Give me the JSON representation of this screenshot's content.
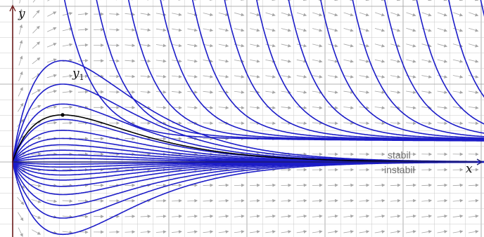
{
  "figure": {
    "axis_x_label": "x",
    "axis_y_label": "y",
    "curve_label_main": "y",
    "curve_label_sub": "1",
    "label_stable": "stabil",
    "label_unstable": "instabil"
  },
  "colors": {
    "background": "#ffffff",
    "grid": "#c8c8c8",
    "grid_major": "#9a9a9a",
    "arrows": "#a6a6a6",
    "curves": "#1c1cc8",
    "highlight_curve": "#000000",
    "axis_x": "#1a1a6e",
    "axis_y": "#6b1a1a"
  },
  "chart_data": {
    "type": "line",
    "description_of_content": "solution curves of a differential equation with direction field",
    "x_range": [
      0,
      16
    ],
    "y_range": [
      -5,
      10
    ],
    "equilibrium_y": 0,
    "highlight_curve": {
      "name": "y1",
      "max_point": [
        1.5,
        5
      ]
    },
    "families": {
      "upper_from_origin": 9,
      "lower_from_origin": 10,
      "decaying_from_top": 14
    }
  }
}
